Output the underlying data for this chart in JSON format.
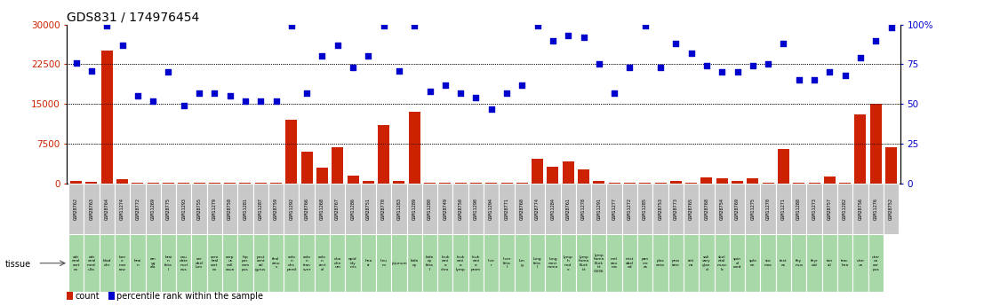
{
  "title": "GDS831 / 174976454",
  "samples": [
    "GSM28762",
    "GSM28763",
    "GSM28764",
    "GSM11274",
    "GSM28772",
    "GSM11269",
    "GSM28775",
    "GSM11293",
    "GSM28755",
    "GSM11279",
    "GSM28758",
    "GSM11281",
    "GSM11287",
    "GSM28759",
    "GSM11292",
    "GSM28766",
    "GSM11268",
    "GSM28767",
    "GSM11286",
    "GSM28751",
    "GSM28770",
    "GSM11283",
    "GSM11289",
    "GSM11280",
    "GSM28749",
    "GSM28750",
    "GSM11290",
    "GSM11294",
    "GSM28771",
    "GSM28760",
    "GSM28774",
    "GSM11284",
    "GSM28761",
    "GSM11278",
    "GSM11291",
    "GSM11277",
    "GSM11272",
    "GSM11285",
    "GSM28753",
    "GSM28773",
    "GSM28765",
    "GSM28768",
    "GSM28754",
    "GSM28769",
    "GSM11275",
    "GSM11270",
    "GSM11271",
    "GSM11288",
    "GSM11273",
    "GSM28757",
    "GSM11282",
    "GSM28756",
    "GSM11276",
    "GSM28752"
  ],
  "tissues": [
    "adr\nenal\ncort\nex",
    "adr\nenal\nmed\nulla",
    "blad\nder",
    "bon\ne\nmar\nrow",
    "brai\nn",
    "am\nyg\nala",
    "brai\nn\nfeta\nl",
    "cau\ndate\nnucl\neus",
    "cer\nebel\nlum",
    "cere\nbral\ncort\nex",
    "corp\nus\ncall\nosun",
    "hip\npoc\ncam\npus",
    "post\ncent\nral\ngyrus",
    "thal\namu\ns",
    "colo\nn\ndes\npend",
    "colo\nn\ntran\nsver",
    "colo\nn\nrect\nal",
    "duo\nden\num",
    "epid\nidy\nmis",
    "hea\nrt",
    "lieu\nm",
    "jejunum",
    "kidn\ney",
    "kidn\ney\nfeta\nl",
    "leuk\nemi\na\nchro",
    "leuk\nemi\na\nlymp",
    "leuk\nemi\na\nprom",
    "live\nr",
    "liver\nfeta\nl",
    "lun\ng",
    "lung\nfeta\nl",
    "lung\ncarci\nnoma",
    "lymp\nh\nnod\ne",
    "lymp\nhoma\nBurk\nitt",
    "lymp\nhoma\nBurk\nitt\nG336",
    "mel\nano\nma",
    "mist\nabel\ned",
    "pan\ncre\nas",
    "plac\nenta",
    "pros\ntate",
    "reti\nna",
    "sali\nvary\nglan\nd",
    "skel\netal\nmusc\nle",
    "spin\nal\ncord",
    "sple\nen",
    "sto\nmac",
    "test\nes",
    "thy\nmus",
    "thyr\noid",
    "ton\nsil",
    "trac\nhea",
    "uter\nus",
    "uter\nus\ncor\npus"
  ],
  "counts": [
    500,
    300,
    25000,
    800,
    200,
    200,
    200,
    200,
    200,
    200,
    200,
    200,
    200,
    200,
    12000,
    6000,
    3000,
    6800,
    1500,
    500,
    11000,
    500,
    13500,
    200,
    200,
    200,
    200,
    200,
    200,
    200,
    4700,
    3200,
    4200,
    2700,
    500,
    200,
    200,
    200,
    200,
    500,
    200,
    1100,
    1000,
    500,
    1000,
    200,
    6600,
    200,
    200,
    1300,
    200,
    13000,
    15000,
    6800
  ],
  "percentiles": [
    76,
    71,
    99,
    87,
    55,
    52,
    70,
    49,
    57,
    57,
    55,
    52,
    52,
    52,
    99,
    57,
    80,
    87,
    73,
    80,
    99,
    71,
    99,
    58,
    62,
    57,
    54,
    47,
    57,
    62,
    99,
    90,
    93,
    92,
    75,
    57,
    73,
    99,
    73,
    88,
    82,
    74,
    70,
    70,
    74,
    75,
    88,
    65,
    65,
    70,
    68,
    79,
    90,
    98
  ],
  "bar_color": "#cc2200",
  "scatter_color": "#0000cc",
  "label_bg": "#c8c8c8",
  "tissue_bg": "#a8d8a8",
  "yticks_left": [
    0,
    7500,
    15000,
    22500,
    30000
  ],
  "yticks_right": [
    0,
    25,
    50,
    75,
    100
  ],
  "ylim_left": [
    0,
    30000
  ],
  "ylim_right": [
    0,
    100
  ]
}
